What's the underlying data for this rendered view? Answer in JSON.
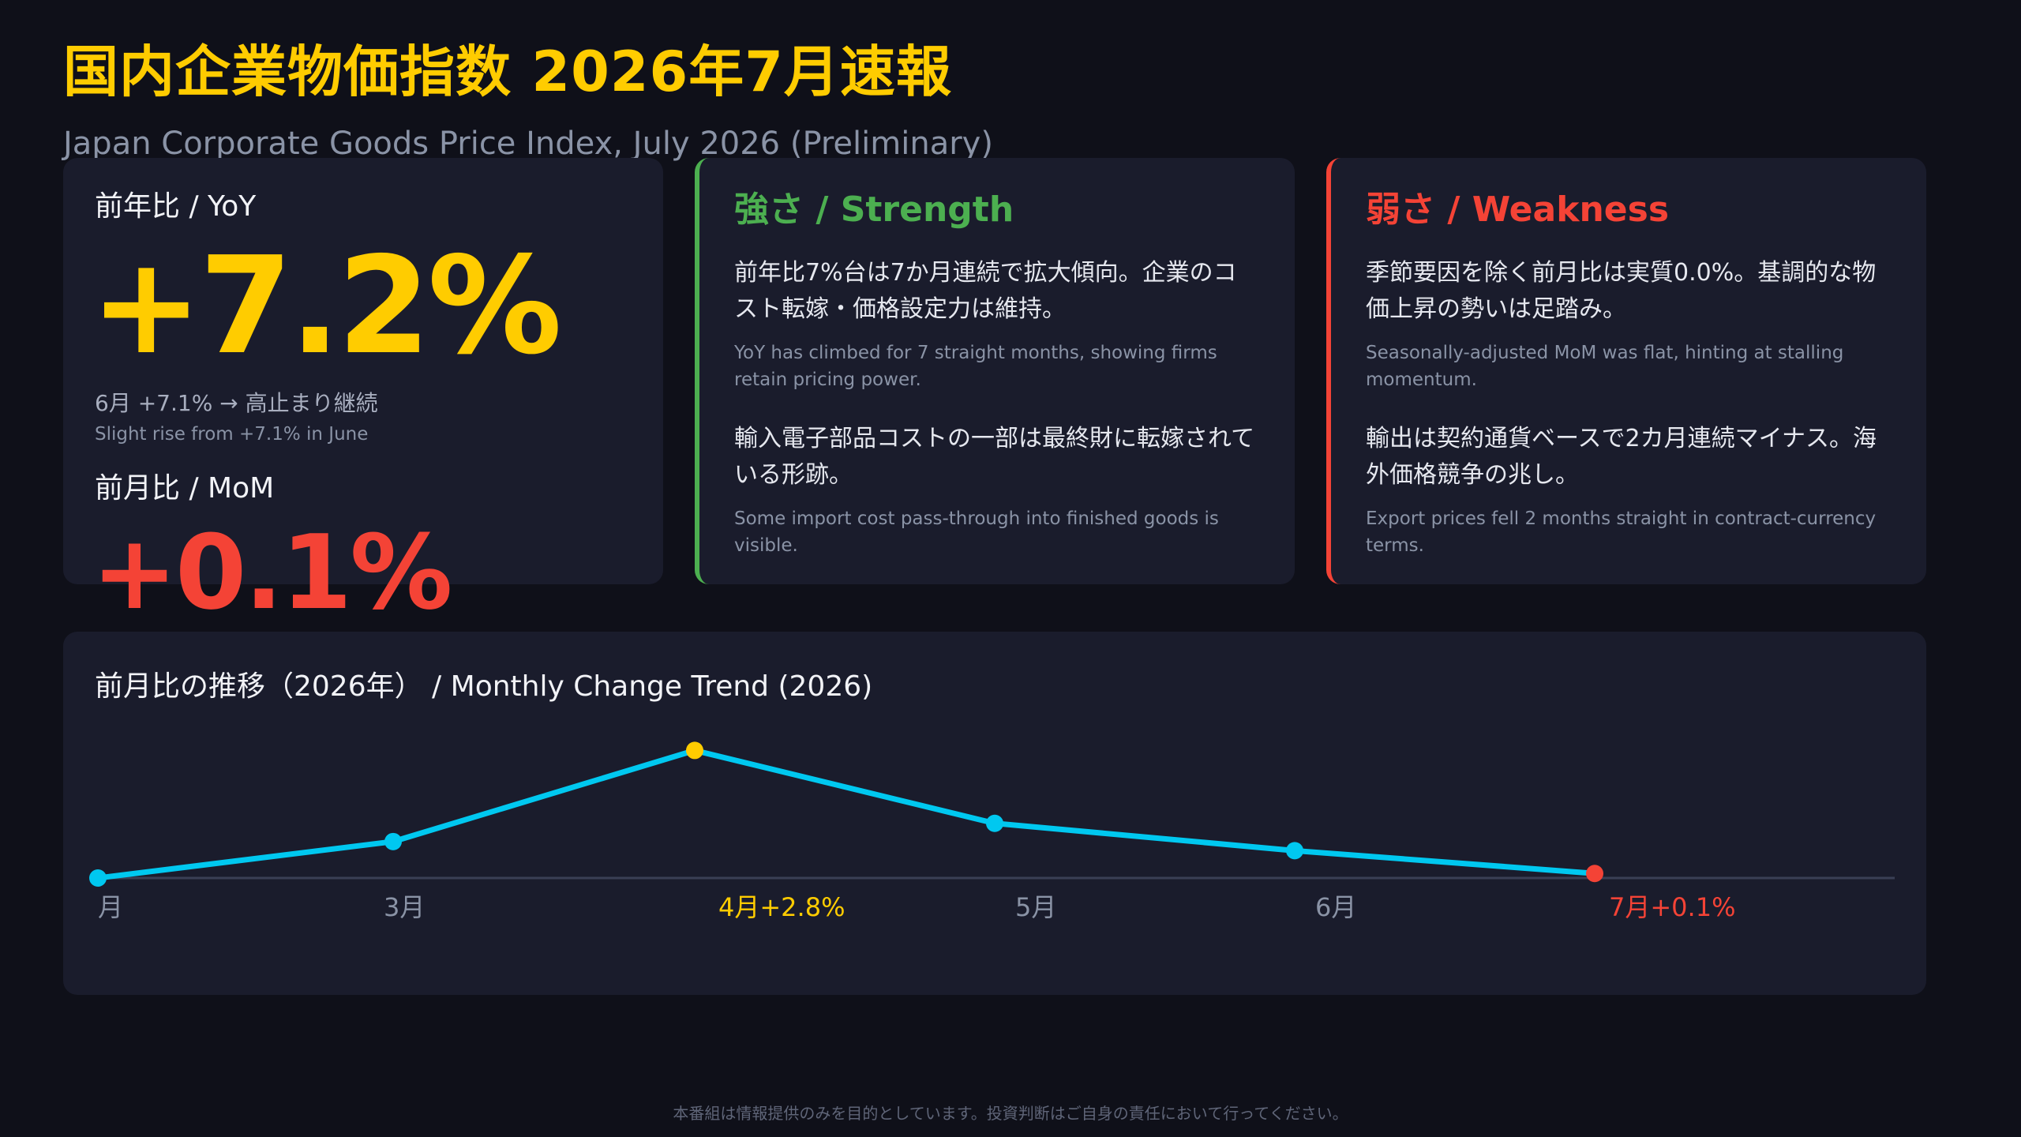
{
  "header": {
    "title": "国内企業物価指数 2026年7月速報",
    "subtitle": "Japan Corporate Goods Price Index, July 2026 (Preliminary)"
  },
  "kpi": {
    "yoy_label": "前年比 / YoY",
    "yoy_value": "+7.2%",
    "yoy_note_jp": "6月 +7.1% → 高止まり継続",
    "yoy_note_en": "Slight rise from +7.1% in June",
    "mom_label": "前月比 / MoM",
    "mom_value": "+0.1%"
  },
  "strength": {
    "title": "強さ / Strength",
    "points": [
      {
        "jp": "前年比7%台は7か月連続で拡大傾向。企業のコスト転嫁・価格設定力は維持。",
        "en": "YoY has climbed for 7 straight months, showing firms retain pricing power."
      },
      {
        "jp": "輸入電子部品コストの一部は最終財に転嫁されている形跡。",
        "en": "Some import cost pass-through into finished goods is visible."
      }
    ]
  },
  "weakness": {
    "title": "弱さ / Weakness",
    "points": [
      {
        "jp": "季節要因を除く前月比は実質0.0%。基調的な物価上昇の勢いは足踏み。",
        "en": "Seasonally-adjusted MoM was flat, hinting at stalling momentum."
      },
      {
        "jp": "輸出は契約通貨ベースで2カ月連続マイナス。海外価格競争の兆し。",
        "en": "Export prices fell 2 months straight in contract-currency terms."
      }
    ]
  },
  "chart_data": {
    "type": "line",
    "title": "前月比の推移（2026年） / Monthly Change Trend (2026)",
    "categories": [
      "月",
      "3月",
      "4月",
      "5月",
      "6月",
      "7月"
    ],
    "tick_labels": [
      "月",
      "3月",
      "4月+2.8%",
      "5月",
      "6月",
      "7月+0.1%"
    ],
    "values": [
      0.0,
      0.8,
      2.8,
      1.2,
      0.6,
      0.1
    ],
    "ylim": [
      0,
      3.5
    ],
    "grid": false,
    "colors": {
      "line": "#00c8f0",
      "baseline": "#3a3f55",
      "tick": "#8a93a6",
      "peak": "#ffcc00",
      "latest": "#f44336"
    }
  },
  "colors": {
    "accent_yellow": "#ffcc00",
    "strength_green": "#4caf50",
    "weakness_red": "#f44336",
    "background": "#0f1019",
    "card": "#1a1c2c"
  },
  "footer": {
    "disclaimer": "本番組は情報提供のみを目的としています。投資判断はご自身の責任において行ってください。"
  }
}
